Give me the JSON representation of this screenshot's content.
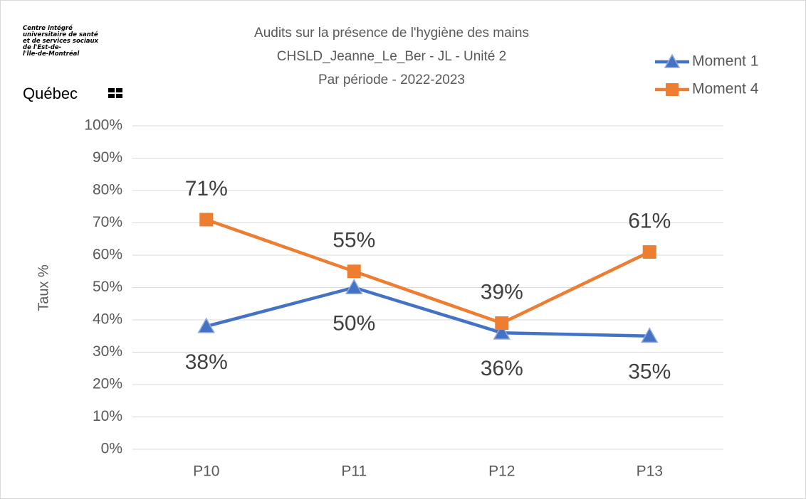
{
  "chart_data": {
    "type": "line",
    "logo": {
      "lines": [
        "Centre intégré",
        "universitaire de santé",
        "et de services sociaux",
        "de l'Est-de-",
        "l'Île-de-Montréal"
      ],
      "name": "Québec"
    },
    "title": [
      "Audits sur la présence de l'hygiène des mains",
      "CHSLD_Jeanne_Le_Ber - JL - Unité 2",
      "Par période - 2022-2023"
    ],
    "ylabel": "Taux %",
    "categories": [
      "P10",
      "P11",
      "P12",
      "P13"
    ],
    "series": [
      {
        "name": "Moment 1",
        "color": "#4472c4",
        "marker": "triangle",
        "values": [
          38,
          50,
          36,
          35
        ],
        "value_labels": [
          "38%",
          "50%",
          "36%",
          "35%"
        ]
      },
      {
        "name": "Moment 4",
        "color": "#ed7d31",
        "marker": "square",
        "values": [
          71,
          55,
          39,
          61
        ],
        "value_labels": [
          "71%",
          "55%",
          "39%",
          "61%"
        ]
      }
    ],
    "ylim": [
      0,
      100
    ],
    "yticks": [
      {
        "value": 0,
        "label": "0%"
      },
      {
        "value": 10,
        "label": "10%"
      },
      {
        "value": 20,
        "label": "20%"
      },
      {
        "value": 30,
        "label": "30%"
      },
      {
        "value": 40,
        "label": "40%"
      },
      {
        "value": 50,
        "label": "50%"
      },
      {
        "value": 60,
        "label": "60%"
      },
      {
        "value": 70,
        "label": "70%"
      },
      {
        "value": 80,
        "label": "80%"
      },
      {
        "value": 90,
        "label": "90%"
      },
      {
        "value": 100,
        "label": "100%"
      }
    ],
    "grid": true,
    "legend": "top-right"
  }
}
